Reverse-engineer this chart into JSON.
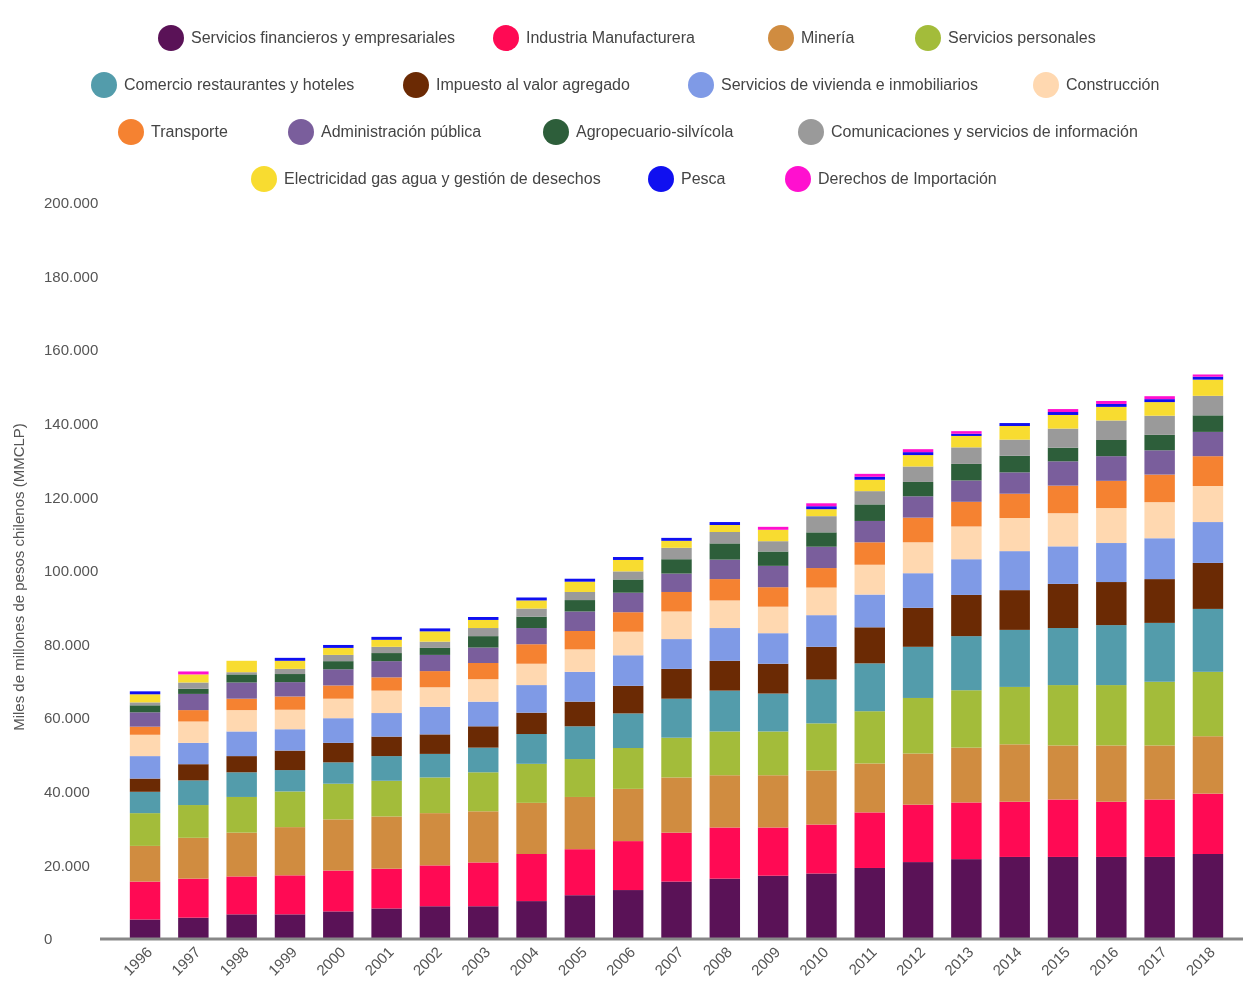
{
  "chart_data": {
    "type": "bar",
    "stacked": true,
    "ylabel": "Miles de millones de pesos chilenos (MMCLP)",
    "legend": "top",
    "grid": false,
    "categories": [
      "1996",
      "1997",
      "1998",
      "1999",
      "2000",
      "2001",
      "2002",
      "2003",
      "2004",
      "2005",
      "2006",
      "2007",
      "2008",
      "2009",
      "2010",
      "2011",
      "2012",
      "2013",
      "2014",
      "2015",
      "2016",
      "2017",
      "2018"
    ],
    "ylim": [
      0,
      200000
    ],
    "yticks": [
      {
        "value": 0,
        "label": "0"
      },
      {
        "value": 20000,
        "label": "20.000"
      },
      {
        "value": 40000,
        "label": "40.000"
      },
      {
        "value": 60000,
        "label": "60.000"
      },
      {
        "value": 80000,
        "label": "80.000"
      },
      {
        "value": 100000,
        "label": "100.000"
      },
      {
        "value": 120000,
        "label": "120.000"
      },
      {
        "value": 140000,
        "label": "140.000"
      },
      {
        "value": 160000,
        "label": "160.000"
      },
      {
        "value": 180000,
        "label": "180.000"
      },
      {
        "value": 200000,
        "label": "200.000"
      }
    ],
    "series": [
      {
        "name": "Servicios financieros y empresariales",
        "color": "#5a1257",
        "values": [
          5300,
          5800,
          6700,
          6700,
          7500,
          8300,
          8900,
          8900,
          10300,
          11900,
          13300,
          15600,
          16400,
          17200,
          17800,
          19300,
          20900,
          21700,
          22300,
          22300,
          22300,
          22300,
          23100
        ]
      },
      {
        "name": "Industria Manufacturera",
        "color": "#ff0a54",
        "values": [
          10300,
          10600,
          10300,
          10600,
          11100,
          10800,
          11100,
          11900,
          12800,
          12500,
          13300,
          13300,
          13900,
          13100,
          13300,
          15100,
          15600,
          15400,
          15000,
          15600,
          15000,
          15600,
          16400
        ]
      },
      {
        "name": "Minería",
        "color": "#d08c40",
        "values": [
          9700,
          11100,
          11900,
          13100,
          13900,
          14200,
          14200,
          13900,
          13900,
          14200,
          14200,
          15000,
          14200,
          14200,
          14700,
          13300,
          13900,
          14900,
          15600,
          14700,
          15300,
          14700,
          15600
        ]
      },
      {
        "name": "Servicios personales",
        "color": "#a3bc3a",
        "values": [
          8900,
          8900,
          9700,
          9700,
          9700,
          9700,
          9700,
          10600,
          10600,
          10300,
          11100,
          10800,
          11900,
          11900,
          12800,
          14200,
          15100,
          15600,
          15600,
          16400,
          16400,
          17300,
          17500
        ]
      },
      {
        "name": "Comercio restaurantes y hoteles",
        "color": "#539cab",
        "values": [
          5800,
          6700,
          6700,
          5800,
          5800,
          6700,
          6400,
          6700,
          8100,
          8900,
          9400,
          10600,
          11100,
          10300,
          11900,
          13000,
          13900,
          14700,
          15500,
          15500,
          16300,
          16000,
          17100
        ]
      },
      {
        "name": "Impuesto al valor agregado",
        "color": "#6b2a04",
        "values": [
          3600,
          4400,
          4400,
          5300,
          5300,
          5300,
          5300,
          5800,
          5800,
          6700,
          7500,
          8100,
          8100,
          8100,
          8900,
          9800,
          10600,
          11200,
          10800,
          12000,
          11700,
          11900,
          12500
        ]
      },
      {
        "name": "Servicios de vivienda e inmobiliarios",
        "color": "#7f9ae6",
        "values": [
          6100,
          5800,
          6700,
          5800,
          6700,
          6400,
          7500,
          6700,
          7500,
          8100,
          8300,
          8100,
          8900,
          8300,
          8600,
          8900,
          9400,
          9700,
          10600,
          10200,
          10600,
          11100,
          11100
        ]
      },
      {
        "name": "Construcción",
        "color": "#ffd8b0",
        "values": [
          5800,
          5800,
          5800,
          5300,
          5300,
          6100,
          5300,
          6100,
          5800,
          6100,
          6400,
          7500,
          7500,
          7200,
          7500,
          8100,
          8400,
          8900,
          9000,
          9000,
          9500,
          9800,
          9800
        ]
      },
      {
        "name": "Transporte",
        "color": "#f58231",
        "values": [
          2200,
          3100,
          3100,
          3600,
          3600,
          3600,
          4400,
          4400,
          5300,
          5000,
          5300,
          5300,
          5800,
          5300,
          5300,
          6100,
          6700,
          6700,
          6600,
          7500,
          7400,
          7500,
          8100
        ]
      },
      {
        "name": "Administración pública",
        "color": "#7a5e9c",
        "values": [
          3900,
          4400,
          4400,
          3900,
          4400,
          4400,
          4400,
          4200,
          4400,
          5300,
          5300,
          5000,
          5300,
          5800,
          5800,
          5800,
          5800,
          5800,
          5800,
          6600,
          6700,
          6600,
          6600
        ]
      },
      {
        "name": "Agropecuario-silvícola",
        "color": "#2d5e3a",
        "values": [
          1900,
          1400,
          2200,
          2200,
          2200,
          2200,
          1900,
          3100,
          3100,
          3100,
          3600,
          3900,
          4400,
          3900,
          3900,
          4500,
          3900,
          4500,
          4500,
          3700,
          4400,
          4200,
          4500
        ]
      },
      {
        "name": "Comunicaciones y servicios de información",
        "color": "#9a9a9a",
        "values": [
          800,
          1700,
          600,
          1400,
          1700,
          1700,
          1700,
          2200,
          2200,
          2200,
          2200,
          3100,
          3100,
          2800,
          4400,
          3600,
          4200,
          4500,
          4400,
          5200,
          5300,
          5200,
          5300
        ]
      },
      {
        "name": "Electricidad gas agua y gestión de desechos",
        "color": "#f8dc30",
        "values": [
          2200,
          2200,
          3100,
          2200,
          1900,
          1900,
          2800,
          2200,
          2200,
          2800,
          3100,
          1900,
          1900,
          3100,
          1900,
          3100,
          3100,
          3100,
          3700,
          3700,
          3700,
          3700,
          4400
        ]
      },
      {
        "name": "Pesca",
        "color": "#1010f0",
        "values": [
          800,
          0,
          0,
          800,
          800,
          800,
          800,
          800,
          800,
          800,
          800,
          800,
          800,
          0,
          800,
          800,
          800,
          600,
          800,
          800,
          800,
          800,
          800
        ]
      },
      {
        "name": "Derechos de Importación",
        "color": "#ff10cf",
        "values": [
          0,
          800,
          0,
          0,
          0,
          0,
          0,
          0,
          0,
          0,
          0,
          0,
          0,
          800,
          800,
          800,
          800,
          700,
          0,
          800,
          800,
          800,
          600
        ]
      }
    ]
  }
}
